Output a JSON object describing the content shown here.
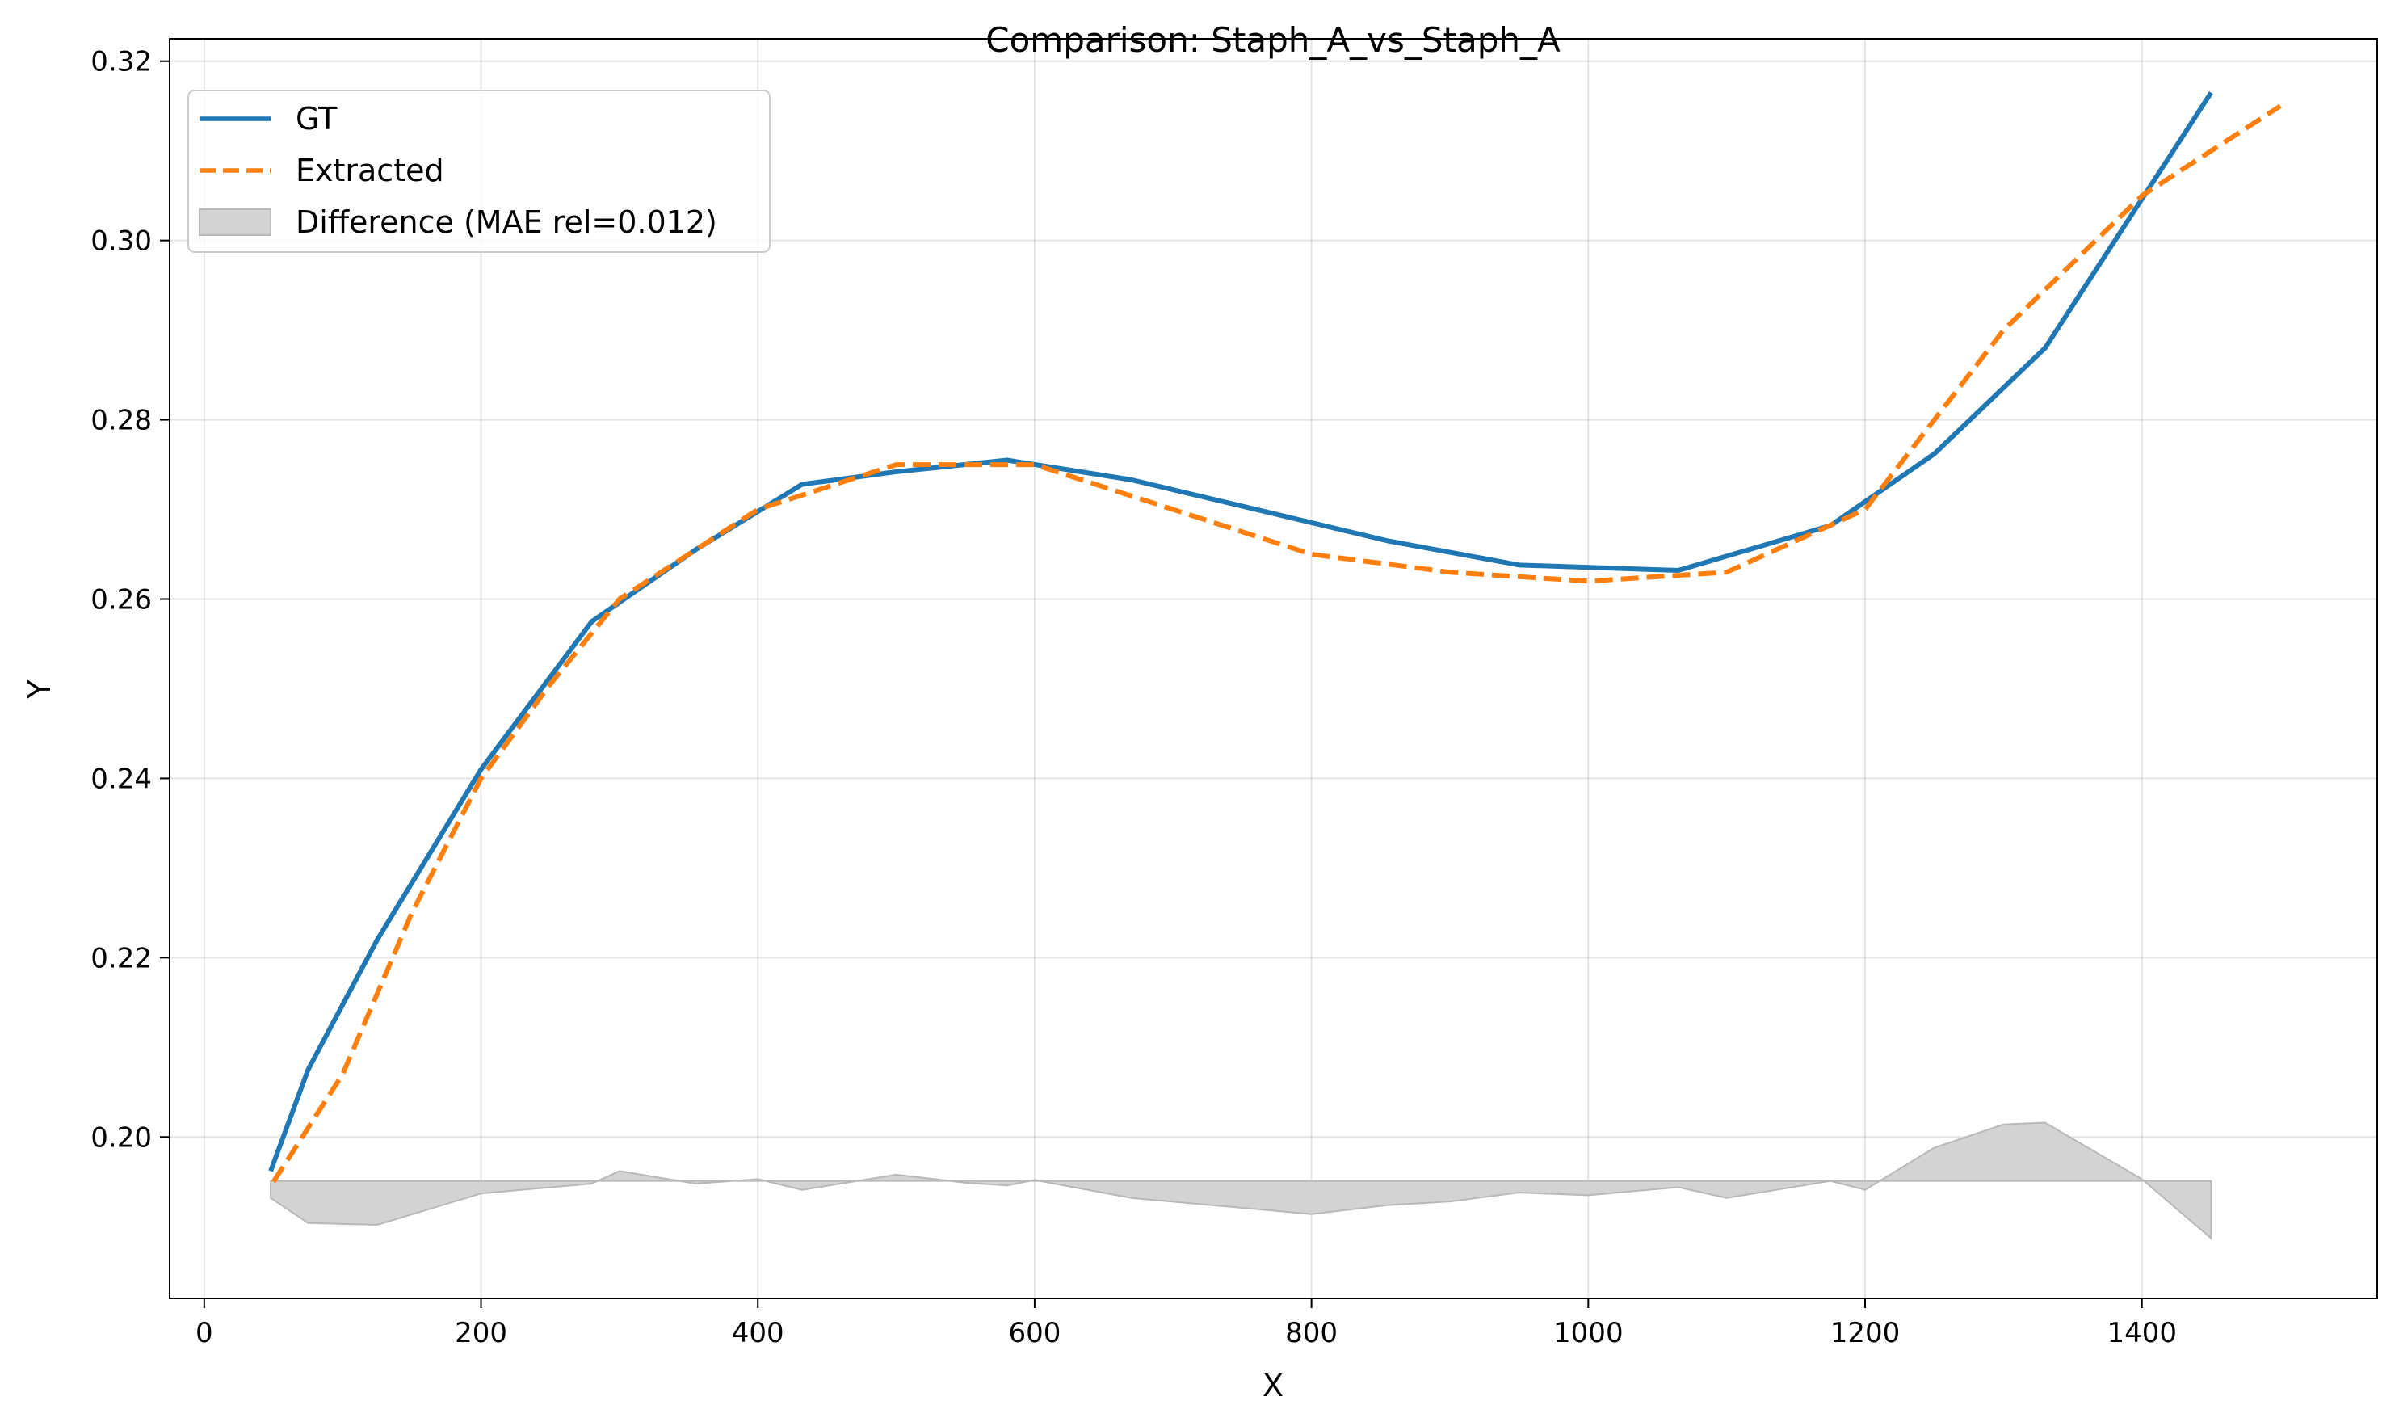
{
  "chart_data": {
    "type": "line",
    "title": "Comparison: Staph_A_vs_Staph_A",
    "xlabel": "X",
    "ylabel": "Y",
    "xlim": [
      -25,
      1570
    ],
    "ylim": [
      0.182,
      0.3225
    ],
    "xticks": [
      0,
      200,
      400,
      600,
      800,
      1000,
      1200,
      1400
    ],
    "xtick_labels": [
      "0",
      "200",
      "400",
      "600",
      "800",
      "1000",
      "1200",
      "1400"
    ],
    "yticks": [
      0.2,
      0.22,
      0.24,
      0.26,
      0.28,
      0.3,
      0.32
    ],
    "ytick_labels": [
      "0.20",
      "0.22",
      "0.24",
      "0.26",
      "0.28",
      "0.30",
      "0.32"
    ],
    "grid": true,
    "legend_position": "top-left",
    "series": [
      {
        "name": "GT",
        "color": "#1f77b4",
        "style": "solid",
        "x": [
          48,
          75,
          125,
          200,
          280,
          355,
          432,
          500,
          580,
          670,
          760,
          855,
          950,
          1065,
          1175,
          1250,
          1330,
          1450
        ],
        "y": [
          0.1962,
          0.2075,
          0.222,
          0.241,
          0.2575,
          0.2655,
          0.2728,
          0.2742,
          0.2755,
          0.2733,
          0.27,
          0.2665,
          0.2638,
          0.2632,
          0.2682,
          0.2762,
          0.288,
          0.3165
        ]
      },
      {
        "name": "Extracted",
        "color": "#ff7f0e",
        "style": "dashed",
        "x": [
          50,
          100,
          150,
          200,
          250,
          300,
          350,
          400,
          450,
          500,
          550,
          600,
          650,
          700,
          750,
          800,
          850,
          900,
          950,
          1000,
          1050,
          1100,
          1150,
          1200,
          1250,
          1300,
          1350,
          1400,
          1450,
          1500
        ],
        "y": [
          0.195,
          0.207,
          0.225,
          0.24,
          0.2505,
          0.26,
          0.265,
          0.27,
          0.2725,
          0.275,
          0.275,
          0.275,
          0.2725,
          0.27,
          0.2675,
          0.265,
          0.264,
          0.263,
          0.2625,
          0.262,
          0.2625,
          0.263,
          0.2665,
          0.27,
          0.28,
          0.29,
          0.2975,
          0.305,
          0.31,
          0.315
        ]
      }
    ],
    "difference": {
      "name": "Difference (MAE rel=0.012)",
      "color": "#d3d3d3",
      "edge_color": "#b8b8b8",
      "baseline": 0.1951,
      "x": [
        48,
        75,
        125,
        200,
        280,
        300,
        355,
        400,
        432,
        500,
        550,
        580,
        600,
        670,
        800,
        855,
        900,
        950,
        1000,
        1065,
        1100,
        1175,
        1200,
        1250,
        1300,
        1330,
        1400,
        1450
      ],
      "y": [
        0.1932,
        0.1904,
        0.1902,
        0.1937,
        0.1948,
        0.1962,
        0.1948,
        0.1953,
        0.1941,
        0.1958,
        0.1949,
        0.1946,
        0.1952,
        0.1932,
        0.1914,
        0.1924,
        0.1928,
        0.1938,
        0.1935,
        0.1944,
        0.1932,
        0.1951,
        0.1941,
        0.1988,
        0.2014,
        0.2016,
        0.1953,
        0.1887
      ]
    }
  }
}
